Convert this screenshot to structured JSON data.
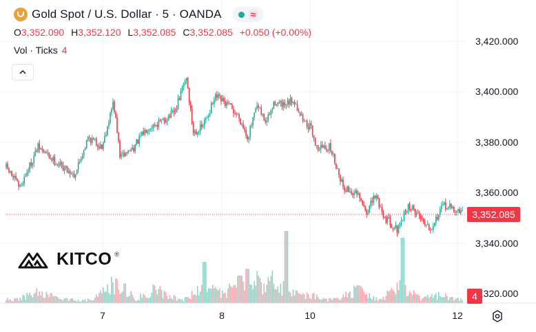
{
  "header": {
    "title": "Gold Spot / U.S. Dollar · 5 · OANDA",
    "ohlc": [
      {
        "label": "O",
        "value": "3,352.090"
      },
      {
        "label": "H",
        "value": "3,352.120"
      },
      {
        "label": "L",
        "value": "3,352.085"
      },
      {
        "label": "C",
        "value": "3,352.085"
      }
    ],
    "change": "+0.050 (+0.00%)",
    "volume_label": "Vol · Ticks",
    "volume_value": "4",
    "market_status": "≈"
  },
  "colors": {
    "up": "#22ab94",
    "down": "#f23645",
    "grid": "#f0f3fa",
    "text": "#131722",
    "brand": "#e9a23b"
  },
  "price_label": "3,352.085",
  "volume_label_tag": "4",
  "y_axis": {
    "ticks": [
      "3,420.000",
      "3,400.000",
      "3,380.000",
      "3,360.000",
      "3,340.000",
      "3,320.000"
    ],
    "tick_values": [
      3420,
      3400,
      3380,
      3360,
      3340,
      3320
    ]
  },
  "x_axis": {
    "ticks": [
      "7",
      "8",
      "10",
      "12"
    ],
    "tick_positions": [
      0.2,
      0.445,
      0.625,
      0.91
    ]
  },
  "logo": {
    "text": "KITCO",
    "mark": "®"
  },
  "chart_data": {
    "type": "candlestick",
    "title": "Gold Spot / U.S. Dollar · 5 · OANDA",
    "ylim": [
      3317,
      3424
    ],
    "current_price": 3352.085,
    "grid": true,
    "path": [
      [
        0.0,
        3370
      ],
      [
        0.03,
        3362
      ],
      [
        0.07,
        3378
      ],
      [
        0.11,
        3372
      ],
      [
        0.15,
        3367
      ],
      [
        0.18,
        3382
      ],
      [
        0.21,
        3378
      ],
      [
        0.235,
        3396
      ],
      [
        0.25,
        3374
      ],
      [
        0.28,
        3378
      ],
      [
        0.31,
        3386
      ],
      [
        0.34,
        3388
      ],
      [
        0.37,
        3392
      ],
      [
        0.395,
        3406
      ],
      [
        0.41,
        3384
      ],
      [
        0.43,
        3386
      ],
      [
        0.46,
        3398
      ],
      [
        0.49,
        3394
      ],
      [
        0.51,
        3390
      ],
      [
        0.53,
        3382
      ],
      [
        0.55,
        3394
      ],
      [
        0.57,
        3388
      ],
      [
        0.59,
        3396
      ],
      [
        0.61,
        3394
      ],
      [
        0.63,
        3397
      ],
      [
        0.65,
        3389
      ],
      [
        0.67,
        3385
      ],
      [
        0.68,
        3378
      ],
      [
        0.71,
        3378
      ],
      [
        0.74,
        3362
      ],
      [
        0.77,
        3359
      ],
      [
        0.79,
        3352
      ],
      [
        0.81,
        3359
      ],
      [
        0.83,
        3350
      ],
      [
        0.86,
        3345
      ],
      [
        0.88,
        3355
      ],
      [
        0.9,
        3352
      ],
      [
        0.93,
        3346
      ],
      [
        0.96,
        3355
      ],
      [
        1.0,
        3352
      ]
    ],
    "volume": {
      "base": 6,
      "peaks": [
        [
          0.07,
          18
        ],
        [
          0.24,
          35
        ],
        [
          0.33,
          25
        ],
        [
          0.44,
          30
        ],
        [
          0.51,
          35
        ],
        [
          0.55,
          40
        ],
        [
          0.575,
          45
        ],
        [
          0.61,
          28
        ],
        [
          0.66,
          14
        ],
        [
          0.77,
          22
        ],
        [
          0.865,
          28
        ],
        [
          0.955,
          14
        ]
      ],
      "spikes": [
        [
          0.615,
          105
        ],
        [
          0.435,
          60
        ],
        [
          0.87,
          95
        ],
        [
          0.53,
          50
        ]
      ]
    }
  }
}
